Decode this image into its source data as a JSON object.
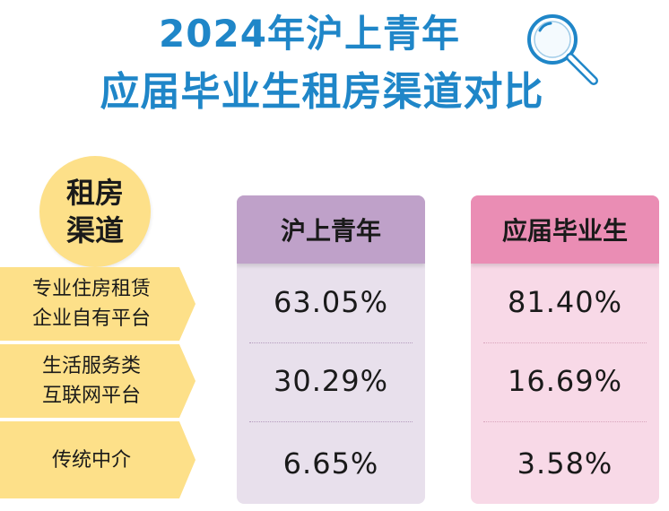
{
  "title": {
    "line1": "2024年沪上青年",
    "line2": "应届毕业生租房渠道对比"
  },
  "colors": {
    "title": "#1f86c8",
    "label_bg": "#fde089",
    "col1_header": "#bfa1c9",
    "col1_body": "#e8e0ec",
    "col2_header": "#ea8db4",
    "col2_body": "#f8d9e7"
  },
  "icon": "magnifier-icon",
  "chart_data": {
    "type": "table",
    "corner_label": [
      "租房",
      "渠道"
    ],
    "columns": [
      "沪上青年",
      "应届毕业生"
    ],
    "rows": [
      {
        "label": [
          "专业住房租赁",
          "企业自有平台"
        ],
        "values": [
          "63.05%",
          "81.40%"
        ]
      },
      {
        "label": [
          "生活服务类",
          "互联网平台"
        ],
        "values": [
          "30.29%",
          "16.69%"
        ]
      },
      {
        "label": [
          "传统中介"
        ],
        "values": [
          "6.65%",
          "3.58%"
        ]
      }
    ]
  }
}
